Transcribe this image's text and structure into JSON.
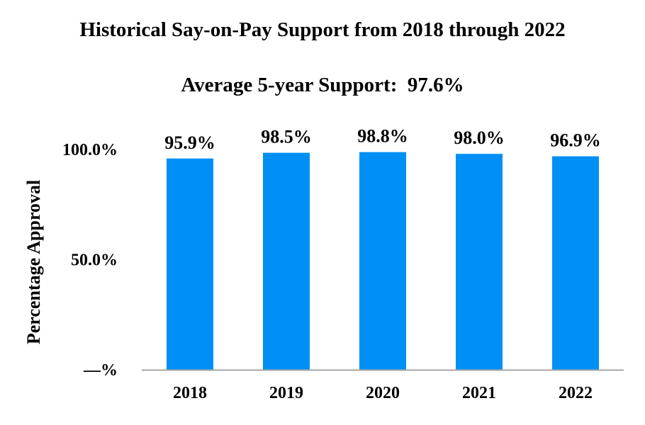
{
  "chart_data": {
    "type": "bar",
    "title": "Historical Say-on-Pay Support from 2018 through 2022",
    "subtitle": "Average 5-year Support:  97.6%",
    "ylabel": "Percentage Approval",
    "xlabel": "",
    "categories": [
      "2018",
      "2019",
      "2020",
      "2021",
      "2022"
    ],
    "values": [
      95.9,
      98.5,
      98.8,
      98.0,
      96.9
    ],
    "data_labels": [
      "95.9%",
      "98.5%",
      "98.8%",
      "98.0%",
      "96.9%"
    ],
    "ylim": [
      0,
      100
    ],
    "y_ticks": [
      0,
      50,
      100
    ],
    "y_tick_labels": [
      "—%",
      "50.0%",
      "100.0%"
    ],
    "grid": false,
    "legend": "none",
    "bar_color": "#0090f5",
    "axis_color": "#a6a6a6"
  }
}
